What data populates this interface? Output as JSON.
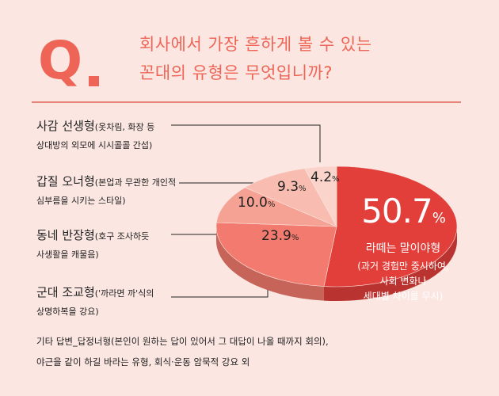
{
  "header": {
    "q_letter": "Q",
    "question_line1": "회사에서 가장 흔하게 볼 수 있는",
    "question_line2": "꼰대의 유형은 무엇입니까?"
  },
  "categories": [
    {
      "main": "사감 선생형",
      "desc": "(옷차림, 화장 등",
      "line2": "상대방의 외모에 시시콜콜 간섭)"
    },
    {
      "main": "갑질 오너형",
      "desc": "(본업과 무관한 개인적",
      "line2": "심부름을 시키는 스타일)"
    },
    {
      "main": "동네 반장형",
      "desc": "(호구 조사하듯",
      "line2": "사생활을 캐물음)"
    },
    {
      "main": "군대 조교형",
      "desc": "('까라면 까'식의",
      "line2": "상명하복을 강요)"
    }
  ],
  "footnote": {
    "line1": "기타 답변_답정너형(본인이 원하는 답이 있어서 그 대답이 나올 때까지 회의),",
    "line2": "야근을 같이 하길 바라는 유형, 회식·운동 암묵적 강요 외"
  },
  "callout": {
    "value": "50.7",
    "unit": "%",
    "title": "라떼는 말이야형",
    "sub1": "(과거 경험만 중시하여,",
    "sub2": "사회 변화나",
    "sub3": "세대별 차이를 무시)"
  },
  "chart_data": {
    "type": "pie",
    "slices": [
      {
        "label": "라떼는 말이야형",
        "value": 50.7,
        "color": "#e23f3b"
      },
      {
        "label": "군대 조교형",
        "value": 23.9,
        "color": "#f37a6e"
      },
      {
        "label": "동네 반장형",
        "value": 10.0,
        "color": "#f5a294"
      },
      {
        "label": "갑질 오너형",
        "value": 9.3,
        "color": "#f8bcb1"
      },
      {
        "label": "사감 선생형",
        "value": 4.2,
        "color": "#fad3ca"
      }
    ],
    "value_labels": [
      {
        "number": "23.9",
        "unit": "%"
      },
      {
        "number": "10.0",
        "unit": "%"
      },
      {
        "number": "9.3",
        "unit": "%"
      },
      {
        "number": "4.2",
        "unit": "%"
      }
    ],
    "title": "",
    "legend": "none"
  }
}
